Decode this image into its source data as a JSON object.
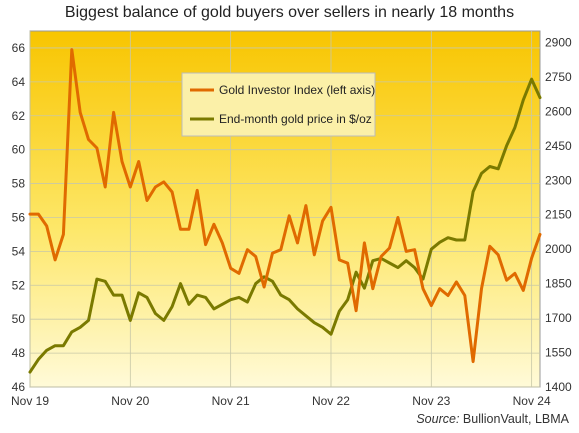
{
  "chart_data": {
    "type": "line",
    "title": "Biggest balance of gold buyers over sellers in nearly 18 months",
    "source_label": "Source:",
    "source_value": "BullionVault, LBMA",
    "x_tick_labels": [
      "Nov 19",
      "Nov 20",
      "Nov 21",
      "Nov 22",
      "Nov 23",
      "Nov 24"
    ],
    "y_left": {
      "ylim": [
        46,
        67
      ],
      "ticks": [
        46,
        48,
        50,
        52,
        54,
        56,
        58,
        60,
        62,
        64,
        66
      ]
    },
    "y_right": {
      "ylim": [
        1400,
        2950
      ],
      "ticks": [
        1400,
        1550,
        1700,
        1850,
        2000,
        2150,
        2300,
        2450,
        2600,
        2750,
        2900
      ]
    },
    "legend_position": "top-center",
    "grid": true,
    "colors": {
      "gii": "#e06a00",
      "gold": "#7a7a00",
      "grid": "#c8c8a8"
    },
    "series": [
      {
        "name": "Gold Investor Index (left axis)",
        "axis": "left",
        "values": [
          56.2,
          56.2,
          55.5,
          53.5,
          55,
          65.9,
          62.2,
          60.6,
          60.1,
          57.8,
          62.2,
          59.3,
          57.8,
          59.3,
          57,
          57.8,
          58.1,
          57.5,
          55.3,
          55.3,
          57.6,
          54.4,
          55.6,
          54.5,
          53,
          52.7,
          54.1,
          53.7,
          51.9,
          53.9,
          54.1,
          56.1,
          54.5,
          56.7,
          53.8,
          55.8,
          56.6,
          53.5,
          53.3,
          50.5,
          54.5,
          51.8,
          53.7,
          54.2,
          56,
          54,
          54.1,
          51.8,
          50.8,
          51.8,
          51.4,
          52.2,
          51.4,
          47.5,
          51.8,
          54.3,
          53.8,
          52.3,
          52.7,
          51.7,
          53.6,
          55
        ]
      },
      {
        "name": "End-month gold price in $/oz",
        "axis": "right",
        "values": [
          1465,
          1520,
          1560,
          1580,
          1580,
          1640,
          1660,
          1690,
          1870,
          1860,
          1800,
          1800,
          1690,
          1810,
          1790,
          1720,
          1690,
          1750,
          1850,
          1760,
          1800,
          1790,
          1740,
          1760,
          1780,
          1790,
          1770,
          1850,
          1880,
          1860,
          1800,
          1780,
          1740,
          1710,
          1680,
          1660,
          1630,
          1730,
          1780,
          1900,
          1830,
          1950,
          1960,
          1940,
          1920,
          1950,
          1920,
          1870,
          2000,
          2030,
          2050,
          2040,
          2040,
          2250,
          2330,
          2360,
          2350,
          2450,
          2530,
          2650,
          2740,
          2660
        ]
      }
    ]
  }
}
